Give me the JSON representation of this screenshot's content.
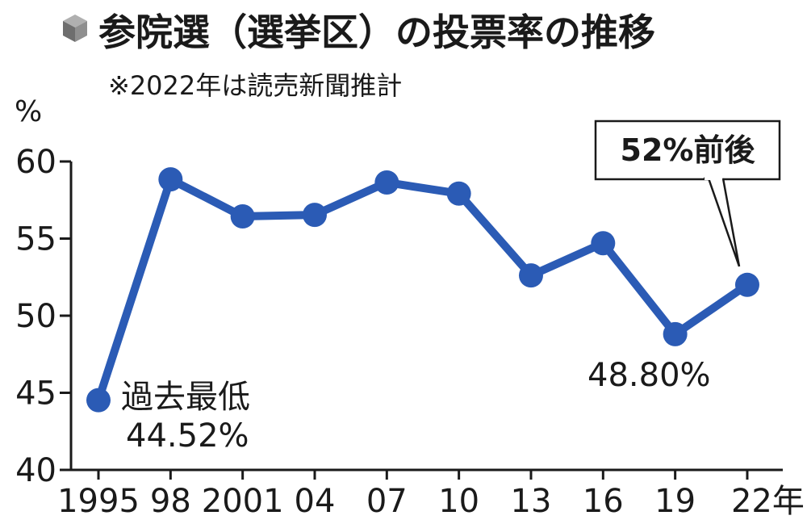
{
  "colors": {
    "line": "#2b5bb5",
    "axis": "#1a1a1a",
    "icon": "#8a8a8a"
  },
  "icon": "cube-icon",
  "chart_data": {
    "type": "line",
    "title": "参院選（選挙区）の投票率の推移",
    "subtitle": "※2022年は読売新聞推計",
    "ylabel": "%",
    "ylim": [
      40,
      60
    ],
    "yticks": [
      "40",
      "45",
      "50",
      "55",
      "60"
    ],
    "x": [
      "1995",
      "98",
      "2001",
      "04",
      "07",
      "10",
      "13",
      "16",
      "19",
      "22"
    ],
    "x_unit_suffix": "年",
    "series": [
      {
        "values": [
          44.52,
          58.84,
          56.44,
          56.54,
          58.64,
          57.92,
          52.61,
          54.7,
          48.8,
          52.0
        ]
      }
    ],
    "annotations": {
      "min_label": "過去最低",
      "min_value": "44.52%",
      "r19_value": "48.80%",
      "r22_callout": "52%前後"
    },
    "grid": false
  }
}
